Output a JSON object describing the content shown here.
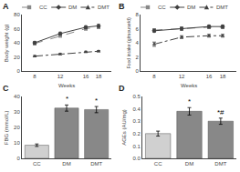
{
  "chart_data": [
    {
      "type": "line",
      "title": "A",
      "xlabel": "Weeks",
      "ylabel": "Body weight (g)",
      "x": [
        8,
        12,
        16,
        18
      ],
      "xlim": [
        6,
        20
      ],
      "xticks": [
        8,
        12,
        16,
        18
      ],
      "ylim": [
        0,
        80
      ],
      "yticks": [
        0,
        20,
        40,
        60,
        80
      ],
      "grid": false,
      "legend": "upper left",
      "series": [
        {
          "name": "CC",
          "color": "#888888",
          "line_style": "dashed",
          "marker": "square",
          "values": [
            39,
            50,
            60,
            62
          ],
          "errors": [
            2,
            2,
            2,
            2
          ]
        },
        {
          "name": "DM",
          "color": "#404040",
          "line_style": "solid",
          "marker": "diamond",
          "values": [
            40,
            53,
            62,
            64
          ],
          "errors": [
            2,
            2,
            2,
            2
          ]
        },
        {
          "name": "DMT",
          "color": "#404040",
          "line_style": "dashdot",
          "marker": "triangle",
          "values": [
            21,
            24,
            27,
            28
          ],
          "errors": [
            1,
            1,
            1,
            1
          ]
        }
      ]
    },
    {
      "type": "line",
      "title": "B",
      "xlabel": "Weeks",
      "ylabel": "Food intake (g/mouse/d)",
      "x": [
        8,
        12,
        16,
        18
      ],
      "xlim": [
        6,
        20
      ],
      "xticks": [
        8,
        12,
        16,
        18
      ],
      "ylim": [
        0,
        8
      ],
      "yticks": [
        0,
        2,
        4,
        6,
        8
      ],
      "grid": false,
      "legend": "upper left",
      "series": [
        {
          "name": "CC",
          "color": "#888888",
          "line_style": "dashed",
          "marker": "square",
          "values": [
            5.8,
            6.0,
            6.2,
            6.2
          ],
          "errors": [
            0.2,
            0.2,
            0.2,
            0.2
          ]
        },
        {
          "name": "DM",
          "color": "#404040",
          "line_style": "solid",
          "marker": "diamond",
          "values": [
            5.7,
            6.0,
            6.3,
            6.3
          ],
          "errors": [
            0.2,
            0.2,
            0.2,
            0.2
          ]
        },
        {
          "name": "DMT",
          "color": "#404040",
          "line_style": "dashdot",
          "marker": "triangle",
          "values": [
            3.8,
            4.8,
            5.0,
            5.0
          ],
          "errors": [
            0.3,
            0.2,
            0.2,
            0.2
          ]
        }
      ]
    },
    {
      "type": "bar",
      "title": "C",
      "ylabel": "FBG (mmol/L)",
      "categories": [
        "CC",
        "DM",
        "DMT"
      ],
      "values": [
        8.5,
        32.5,
        31.5
      ],
      "errors": [
        0.8,
        2.0,
        2.0
      ],
      "colors": [
        "#d0d0d0",
        "#888888",
        "#888888"
      ],
      "ylim": [
        0,
        40
      ],
      "yticks": [
        0,
        10,
        20,
        30,
        40
      ],
      "grid": false,
      "annotations": [
        {
          "x": "DM",
          "text": "*"
        },
        {
          "x": "DMT",
          "text": "*"
        }
      ]
    },
    {
      "type": "bar",
      "title": "D",
      "ylabel": "AGEs (AU/mg)",
      "categories": [
        "CC",
        "DM",
        "DMT"
      ],
      "values": [
        0.2,
        0.38,
        0.3
      ],
      "errors": [
        0.02,
        0.03,
        0.025
      ],
      "colors": [
        "#d0d0d0",
        "#888888",
        "#888888"
      ],
      "ylim": [
        0.0,
        0.5
      ],
      "yticks": [
        {
          "value": 0.0,
          "label": "0.0"
        },
        0.1,
        0.2,
        0.3,
        0.4,
        0.5
      ],
      "grid": false,
      "annotations": [
        {
          "x": "DM",
          "text": "*"
        },
        {
          "x": "DMT",
          "text": "*#"
        }
      ]
    }
  ]
}
